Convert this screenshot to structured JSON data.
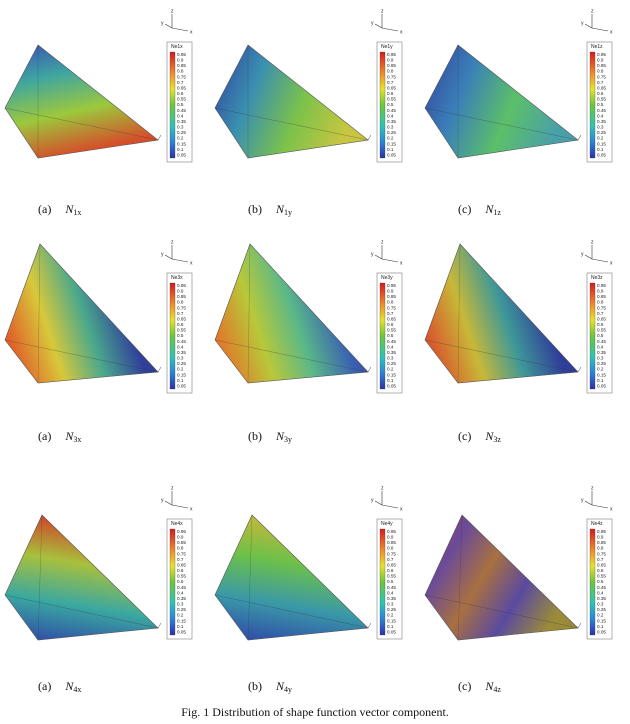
{
  "panels": [
    {
      "label": "(a)",
      "symbol": "N",
      "subscript": "1x",
      "legend_title": "Ne1x"
    },
    {
      "label": "(b)",
      "symbol": "N",
      "subscript": "1y",
      "legend_title": "Ne1y"
    },
    {
      "label": "(c)",
      "symbol": "N",
      "subscript": "1z",
      "legend_title": "Ne1z"
    },
    {
      "label": "(a)",
      "symbol": "N",
      "subscript": "3x",
      "legend_title": "Ne3x"
    },
    {
      "label": "(b)",
      "symbol": "N",
      "subscript": "3y",
      "legend_title": "Ne3y"
    },
    {
      "label": "(c)",
      "symbol": "N",
      "subscript": "3z",
      "legend_title": "Ne3z"
    },
    {
      "label": "(a)",
      "symbol": "N",
      "subscript": "4x",
      "legend_title": "Ne4x"
    },
    {
      "label": "(b)",
      "symbol": "N",
      "subscript": "4y",
      "legend_title": "Ne4y"
    },
    {
      "label": "(c)",
      "symbol": "N",
      "subscript": "4z",
      "legend_title": "Ne4z"
    }
  ],
  "legend_levels": [
    "0.95",
    "0.9",
    "0.85",
    "0.8",
    "0.75",
    "0.7",
    "0.65",
    "0.6",
    "0.55",
    "0.5",
    "0.45",
    "0.4",
    "0.35",
    "0.3",
    "0.25",
    "0.2",
    "0.15",
    "0.1",
    "0.05"
  ],
  "axes_labels": {
    "z": "z",
    "y": "y",
    "x": "x"
  },
  "caption": "Fig. 1 Distribution of shape function vector component."
}
